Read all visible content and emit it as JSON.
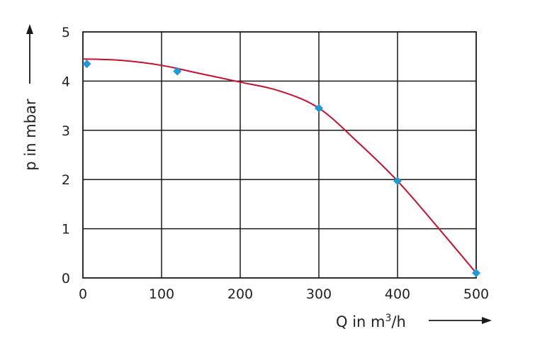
{
  "chart_data": {
    "type": "line",
    "title": "",
    "xlabel": {
      "prefix": "Q in m",
      "sup": "3",
      "suffix": "/h"
    },
    "ylabel": "p in mbar",
    "xlim": [
      0,
      500
    ],
    "ylim": [
      0,
      5
    ],
    "xticks": [
      0,
      100,
      200,
      300,
      400,
      500
    ],
    "yticks": [
      0,
      1,
      2,
      3,
      4,
      5
    ],
    "grid": true,
    "series": [
      {
        "kind": "curve",
        "color": "#c8102e",
        "x": [
          0,
          50,
          100,
          150,
          200,
          250,
          300,
          350,
          400,
          450,
          500
        ],
        "y": [
          4.45,
          4.42,
          4.32,
          4.15,
          3.98,
          3.8,
          3.45,
          2.75,
          1.97,
          1.05,
          0.1
        ]
      },
      {
        "kind": "markers",
        "marker": "diamond",
        "color": "#1e9ad6",
        "x": [
          5,
          120,
          300,
          400,
          500
        ],
        "y": [
          4.35,
          4.2,
          3.45,
          1.97,
          0.1
        ]
      }
    ]
  }
}
